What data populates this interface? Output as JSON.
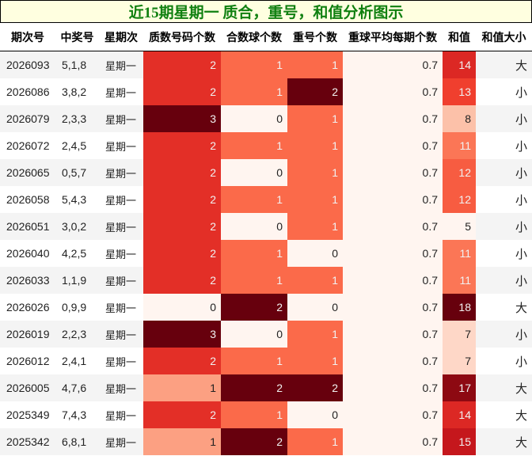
{
  "title": "近15期星期一 质合，重号，和值分析图示",
  "columns": [
    "期次号",
    "中奖号",
    "星期次",
    "质数号码个数",
    "合数球个数",
    "重号个数",
    "重球平均每期个数",
    "和值",
    "和值大小"
  ],
  "colors": {
    "title_text": "#108010",
    "title_bg": "#ffffe0",
    "reds_scale": {
      "0": "#fff5f0",
      "low": "#fca486",
      "mid": "#fc6c4c",
      "high": "#e32f27",
      "max": "#67000d"
    }
  },
  "rows": [
    {
      "issue": "2026093",
      "numbers": "5,1,8",
      "weekday": "星期一",
      "prime": "2",
      "composite": "1",
      "repeat": "1",
      "avg_repeat": "0.7",
      "sum": "14",
      "size": "大"
    },
    {
      "issue": "2026086",
      "numbers": "3,8,2",
      "weekday": "星期一",
      "prime": "2",
      "composite": "1",
      "repeat": "2",
      "avg_repeat": "0.7",
      "sum": "13",
      "size": "小"
    },
    {
      "issue": "2026079",
      "numbers": "2,3,3",
      "weekday": "星期一",
      "prime": "3",
      "composite": "0",
      "repeat": "1",
      "avg_repeat": "0.7",
      "sum": "8",
      "size": "小"
    },
    {
      "issue": "2026072",
      "numbers": "2,4,5",
      "weekday": "星期一",
      "prime": "2",
      "composite": "1",
      "repeat": "1",
      "avg_repeat": "0.7",
      "sum": "11",
      "size": "小"
    },
    {
      "issue": "2026065",
      "numbers": "0,5,7",
      "weekday": "星期一",
      "prime": "2",
      "composite": "0",
      "repeat": "1",
      "avg_repeat": "0.7",
      "sum": "12",
      "size": "小"
    },
    {
      "issue": "2026058",
      "numbers": "5,4,3",
      "weekday": "星期一",
      "prime": "2",
      "composite": "1",
      "repeat": "1",
      "avg_repeat": "0.7",
      "sum": "12",
      "size": "小"
    },
    {
      "issue": "2026051",
      "numbers": "3,0,2",
      "weekday": "星期一",
      "prime": "2",
      "composite": "0",
      "repeat": "1",
      "avg_repeat": "0.7",
      "sum": "5",
      "size": "小"
    },
    {
      "issue": "2026040",
      "numbers": "4,2,5",
      "weekday": "星期一",
      "prime": "2",
      "composite": "1",
      "repeat": "0",
      "avg_repeat": "0.7",
      "sum": "11",
      "size": "小"
    },
    {
      "issue": "2026033",
      "numbers": "1,1,9",
      "weekday": "星期一",
      "prime": "2",
      "composite": "1",
      "repeat": "1",
      "avg_repeat": "0.7",
      "sum": "11",
      "size": "小"
    },
    {
      "issue": "2026026",
      "numbers": "0,9,9",
      "weekday": "星期一",
      "prime": "0",
      "composite": "2",
      "repeat": "0",
      "avg_repeat": "0.7",
      "sum": "18",
      "size": "大"
    },
    {
      "issue": "2026019",
      "numbers": "2,2,3",
      "weekday": "星期一",
      "prime": "3",
      "composite": "0",
      "repeat": "1",
      "avg_repeat": "0.7",
      "sum": "7",
      "size": "小"
    },
    {
      "issue": "2026012",
      "numbers": "2,4,1",
      "weekday": "星期一",
      "prime": "2",
      "composite": "1",
      "repeat": "1",
      "avg_repeat": "0.7",
      "sum": "7",
      "size": "小"
    },
    {
      "issue": "2026005",
      "numbers": "4,7,6",
      "weekday": "星期一",
      "prime": "1",
      "composite": "2",
      "repeat": "2",
      "avg_repeat": "0.7",
      "sum": "17",
      "size": "大"
    },
    {
      "issue": "2025349",
      "numbers": "7,4,3",
      "weekday": "星期一",
      "prime": "2",
      "composite": "1",
      "repeat": "0",
      "avg_repeat": "0.7",
      "sum": "14",
      "size": "大"
    },
    {
      "issue": "2025342",
      "numbers": "6,8,1",
      "weekday": "星期一",
      "prime": "1",
      "composite": "2",
      "repeat": "1",
      "avg_repeat": "0.7",
      "sum": "15",
      "size": "大"
    }
  ]
}
